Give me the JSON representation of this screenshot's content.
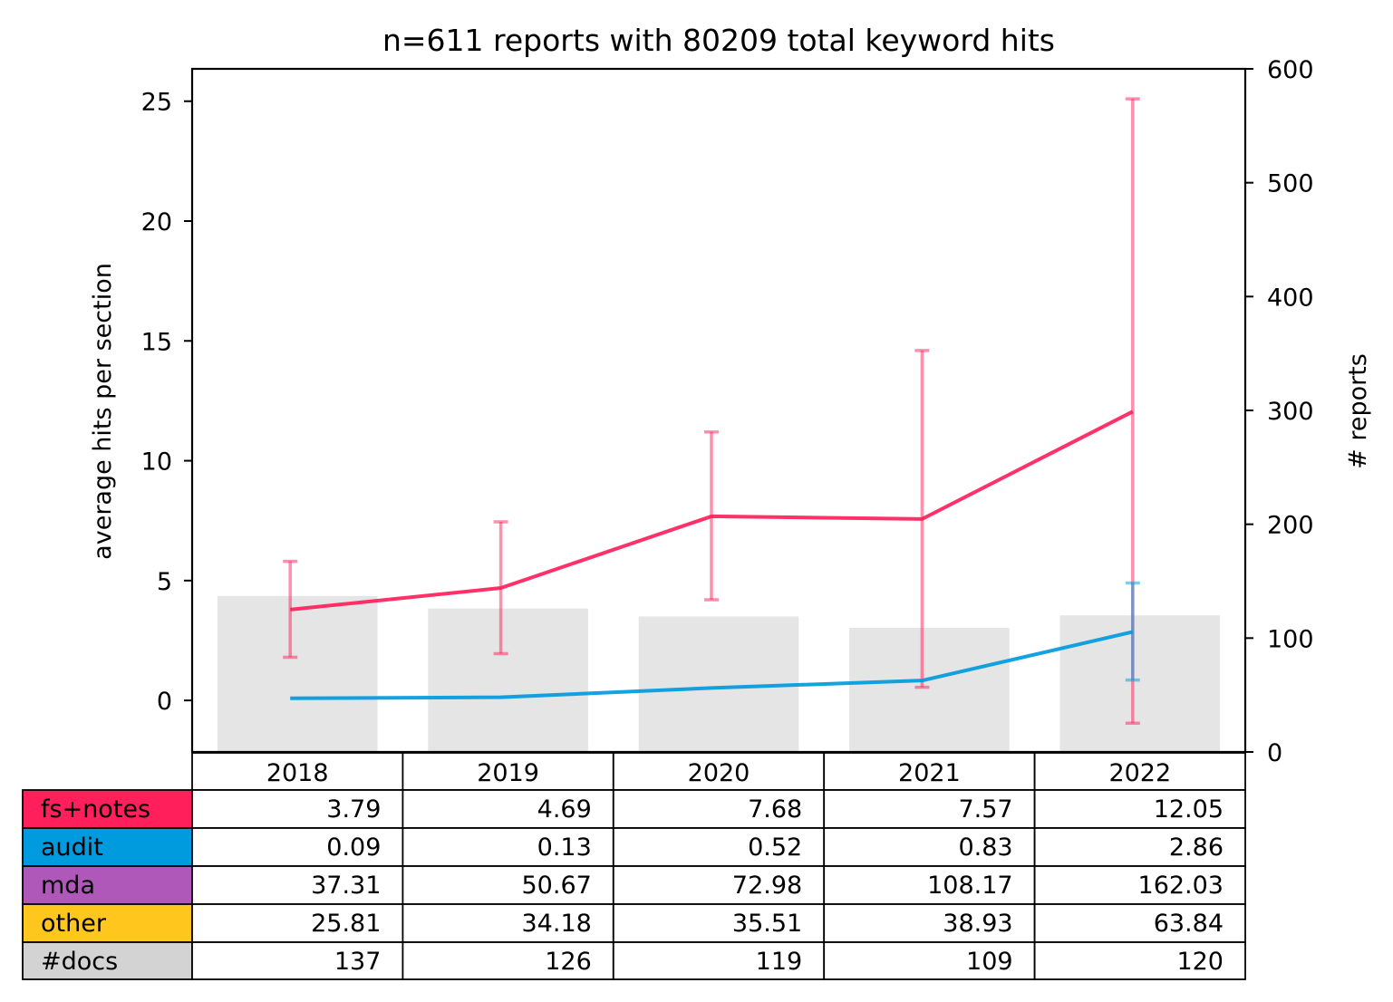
{
  "chart_data": {
    "type": "line",
    "title": "n=611 reports with 80209 total keyword hits",
    "ylabel": "average hits per section",
    "y2label": "# reports",
    "categories": [
      "2018",
      "2019",
      "2020",
      "2021",
      "2022"
    ],
    "ylim": [
      -2.15,
      26.35
    ],
    "yticks": [
      0,
      5,
      10,
      15,
      20,
      25
    ],
    "y2lim": [
      0,
      600
    ],
    "y2ticks": [
      0,
      100,
      200,
      300,
      400,
      500,
      600
    ],
    "series": [
      {
        "name": "fs+notes",
        "color": "#ff1f5b",
        "values": [
          3.79,
          4.69,
          7.68,
          7.57,
          12.05
        ],
        "error_low": [
          1.8,
          1.95,
          4.2,
          0.55,
          -0.95
        ],
        "error_high": [
          5.8,
          7.45,
          11.2,
          14.6,
          25.1
        ]
      },
      {
        "name": "audit",
        "color": "#009ade",
        "values": [
          0.09,
          0.13,
          0.52,
          0.83,
          2.86
        ],
        "error_low": [
          0.09,
          0.13,
          0.52,
          0.83,
          0.85
        ],
        "error_high": [
          0.09,
          0.13,
          0.52,
          0.83,
          4.9
        ]
      }
    ],
    "bars": {
      "name": "#docs",
      "color": "#e5e5e5",
      "axis": "right",
      "values": [
        137,
        126,
        119,
        109,
        120
      ]
    },
    "table": {
      "header": [
        "2018",
        "2019",
        "2020",
        "2021",
        "2022"
      ],
      "rows": [
        {
          "label": "fs+notes",
          "color": "#ff1f5b",
          "cells": [
            "3.79",
            "4.69",
            "7.68",
            "7.57",
            "12.05"
          ]
        },
        {
          "label": "audit",
          "color": "#009ade",
          "cells": [
            "0.09",
            "0.13",
            "0.52",
            "0.83",
            "2.86"
          ]
        },
        {
          "label": "mda",
          "color": "#af58ba",
          "cells": [
            "37.31",
            "50.67",
            "72.98",
            "108.17",
            "162.03"
          ]
        },
        {
          "label": "other",
          "color": "#ffc61e",
          "cells": [
            "25.81",
            "34.18",
            "35.51",
            "38.93",
            "63.84"
          ]
        },
        {
          "label": "#docs",
          "color": "#d3d3d3",
          "cells": [
            "137",
            "126",
            "119",
            "109",
            "120"
          ]
        }
      ]
    }
  }
}
